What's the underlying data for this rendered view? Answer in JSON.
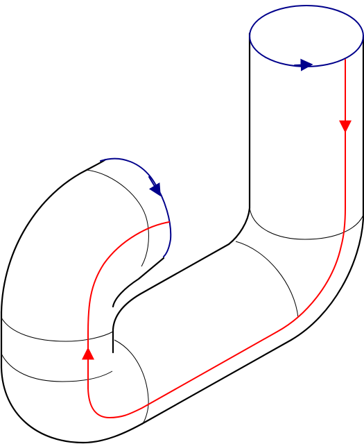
{
  "diagram": {
    "subject": "bent-tube-surface",
    "colors": {
      "background": "#ffffff",
      "outline": "#000000",
      "section_line": "#000000",
      "boundary_circle": "#00008b",
      "boundary_arc": "#00008b",
      "path_curve": "#ff0000"
    },
    "icons": {
      "top_arrow": "arrowhead-right",
      "arc_arrow": "arrowhead-down",
      "path_arrow_down": "arrowhead-down",
      "path_arrow_up": "arrowhead-up"
    }
  }
}
